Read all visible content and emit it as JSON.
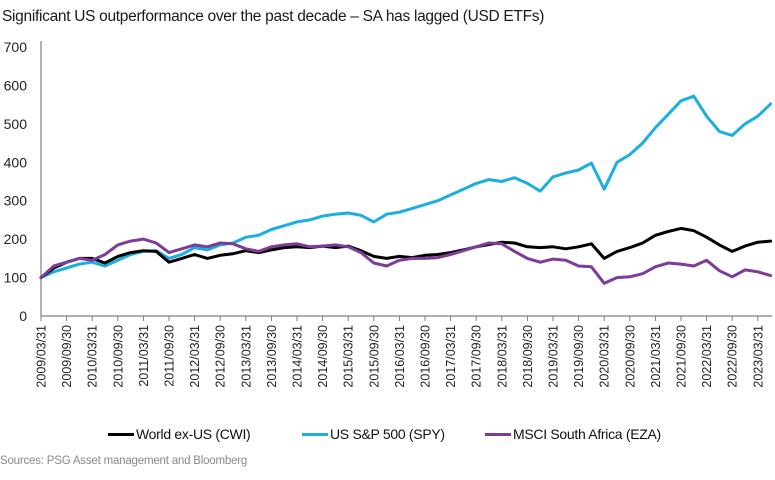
{
  "title": "Significant US outperformance over the past decade – SA has lagged (USD ETFs)",
  "source": "Sources: PSG Asset management and Bloomberg",
  "chart_data": {
    "type": "line",
    "title": "Significant US outperformance over the past decade – SA has lagged (USD ETFs)",
    "xlabel": "",
    "ylabel": "",
    "ylim": [
      0,
      700
    ],
    "yticks": [
      0,
      100,
      200,
      300,
      400,
      500,
      600,
      700
    ],
    "grid": false,
    "legend_position": "bottom",
    "x_tick_labels": [
      "2009/03/31",
      "2009/09/30",
      "2010/03/31",
      "2010/09/30",
      "2011/03/31",
      "2011/09/30",
      "2012/03/31",
      "2012/09/30",
      "2013/03/31",
      "2013/09/30",
      "2014/03/31",
      "2014/09/30",
      "2015/03/31",
      "2015/09/30",
      "2016/03/31",
      "2016/09/30",
      "2017/03/31",
      "2017/09/30",
      "2018/03/31",
      "2018/09/30",
      "2019/03/31",
      "2019/09/30",
      "2020/03/31",
      "2020/09/30",
      "2021/03/31",
      "2021/09/30",
      "2022/03/31",
      "2022/09/30",
      "2023/03/31"
    ],
    "x": [
      "2009Q1",
      "2009Q2",
      "2009Q3",
      "2009Q4",
      "2010Q1",
      "2010Q2",
      "2010Q3",
      "2010Q4",
      "2011Q1",
      "2011Q2",
      "2011Q3",
      "2011Q4",
      "2012Q1",
      "2012Q2",
      "2012Q3",
      "2012Q4",
      "2013Q1",
      "2013Q2",
      "2013Q3",
      "2013Q4",
      "2014Q1",
      "2014Q2",
      "2014Q3",
      "2014Q4",
      "2015Q1",
      "2015Q2",
      "2015Q3",
      "2015Q4",
      "2016Q1",
      "2016Q2",
      "2016Q3",
      "2016Q4",
      "2017Q1",
      "2017Q2",
      "2017Q3",
      "2017Q4",
      "2018Q1",
      "2018Q2",
      "2018Q3",
      "2018Q4",
      "2019Q1",
      "2019Q2",
      "2019Q3",
      "2019Q4",
      "2020Q1",
      "2020Q2",
      "2020Q3",
      "2020Q4",
      "2021Q1",
      "2021Q2",
      "2021Q3",
      "2021Q4",
      "2022Q1",
      "2022Q2",
      "2022Q3",
      "2022Q4",
      "2023Q1",
      "2023Q2"
    ],
    "series": [
      {
        "name": "World ex-US (CWI)",
        "color": "#000000",
        "values": [
          100,
          125,
          140,
          150,
          150,
          138,
          155,
          165,
          170,
          168,
          140,
          150,
          160,
          150,
          158,
          162,
          170,
          165,
          172,
          178,
          180,
          178,
          182,
          178,
          182,
          170,
          155,
          150,
          155,
          152,
          158,
          160,
          165,
          172,
          180,
          186,
          192,
          190,
          180,
          178,
          180,
          175,
          180,
          188,
          150,
          168,
          178,
          190,
          210,
          220,
          228,
          222,
          205,
          185,
          168,
          182,
          192,
          195
        ]
      },
      {
        "name": "US S&P 500 (SPY)",
        "color": "#1aafe0",
        "values": [
          100,
          115,
          125,
          135,
          140,
          130,
          145,
          160,
          168,
          170,
          150,
          160,
          178,
          172,
          185,
          190,
          205,
          210,
          225,
          235,
          245,
          250,
          260,
          265,
          268,
          262,
          245,
          265,
          270,
          280,
          290,
          300,
          315,
          330,
          345,
          355,
          350,
          360,
          345,
          325,
          362,
          372,
          380,
          398,
          330,
          400,
          420,
          450,
          490,
          525,
          560,
          572,
          520,
          480,
          470,
          500,
          520,
          552
        ]
      },
      {
        "name": "MSCI South Africa (EZA)",
        "color": "#7d3c98",
        "values": [
          100,
          130,
          140,
          150,
          145,
          160,
          185,
          195,
          200,
          190,
          165,
          175,
          185,
          180,
          190,
          188,
          175,
          168,
          180,
          185,
          188,
          180,
          182,
          185,
          180,
          165,
          138,
          130,
          145,
          150,
          150,
          152,
          160,
          170,
          180,
          190,
          188,
          168,
          150,
          140,
          148,
          145,
          130,
          128,
          85,
          100,
          102,
          110,
          128,
          138,
          135,
          130,
          145,
          118,
          102,
          120,
          115,
          105
        ]
      }
    ]
  }
}
